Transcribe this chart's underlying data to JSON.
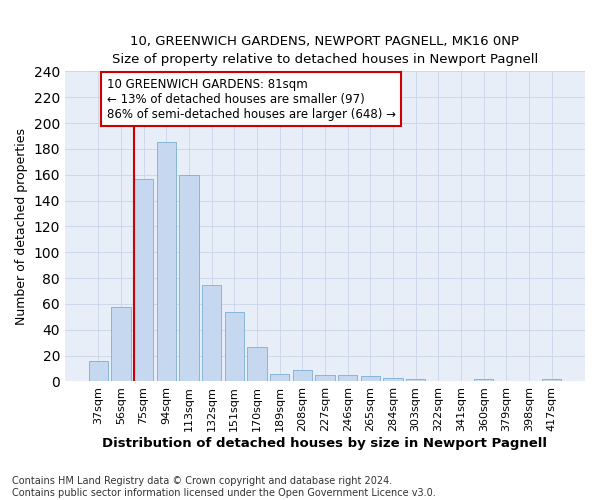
{
  "title": "10, GREENWICH GARDENS, NEWPORT PAGNELL, MK16 0NP",
  "subtitle": "Size of property relative to detached houses in Newport Pagnell",
  "xlabel": "Distribution of detached houses by size in Newport Pagnell",
  "ylabel": "Number of detached properties",
  "bar_labels": [
    "37sqm",
    "56sqm",
    "75sqm",
    "94sqm",
    "113sqm",
    "132sqm",
    "151sqm",
    "170sqm",
    "189sqm",
    "208sqm",
    "227sqm",
    "246sqm",
    "265sqm",
    "284sqm",
    "303sqm",
    "322sqm",
    "341sqm",
    "360sqm",
    "379sqm",
    "398sqm",
    "417sqm"
  ],
  "bar_values": [
    16,
    58,
    157,
    185,
    160,
    75,
    54,
    27,
    6,
    9,
    5,
    5,
    4,
    3,
    2,
    0,
    0,
    2,
    0,
    0,
    2
  ],
  "bar_color": "#c5d8f0",
  "bar_edge_color": "#7aafd4",
  "vline_index": 2,
  "annotation_text_line1": "10 GREENWICH GARDENS: 81sqm",
  "annotation_text_line2": "← 13% of detached houses are smaller (97)",
  "annotation_text_line3": "86% of semi-detached houses are larger (648) →",
  "annotation_box_color": "#ffffff",
  "annotation_box_edge": "#cc0000",
  "vline_color": "#cc0000",
  "ylim": [
    0,
    240
  ],
  "yticks": [
    0,
    20,
    40,
    60,
    80,
    100,
    120,
    140,
    160,
    180,
    200,
    220,
    240
  ],
  "grid_color": "#c8d4e8",
  "background_color": "#e8eef8",
  "footer_line1": "Contains HM Land Registry data © Crown copyright and database right 2024.",
  "footer_line2": "Contains public sector information licensed under the Open Government Licence v3.0."
}
